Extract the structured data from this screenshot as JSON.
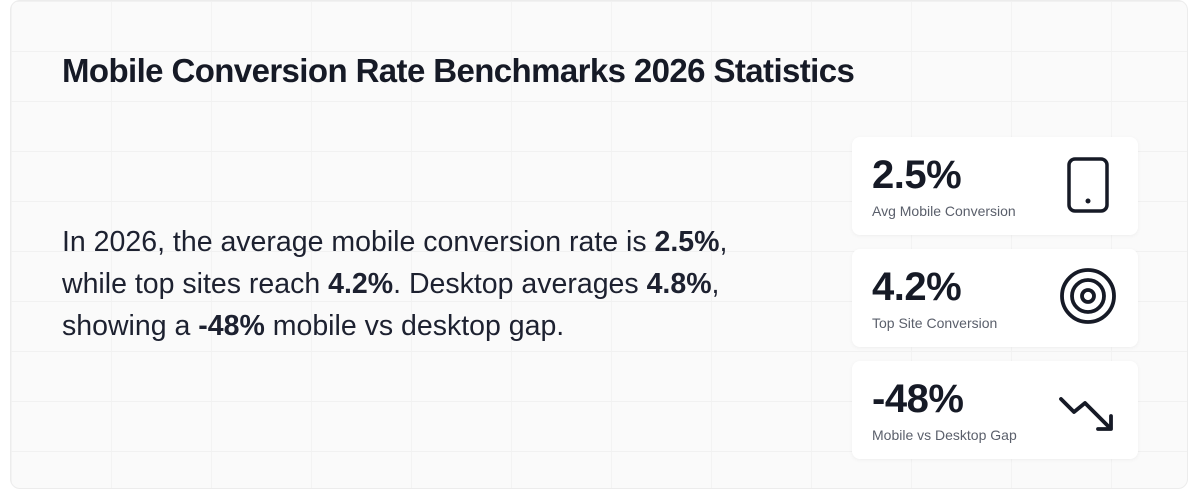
{
  "header": {
    "title": "Mobile Conversion Rate Benchmarks 2026 Statistics"
  },
  "summary": {
    "segments": [
      {
        "text": "In 2026, the average mobile conversion rate is ",
        "bold": false
      },
      {
        "text": "2.5%",
        "bold": true
      },
      {
        "text": ", while top sites reach ",
        "bold": false
      },
      {
        "text": "4.2%",
        "bold": true
      },
      {
        "text": ". Desktop averages ",
        "bold": false
      },
      {
        "text": "4.8%",
        "bold": true
      },
      {
        "text": ", showing a ",
        "bold": false
      },
      {
        "text": "-48%",
        "bold": true
      },
      {
        "text": " mobile vs desktop gap.",
        "bold": false
      }
    ]
  },
  "stats": [
    {
      "value": "2.5%",
      "label": "Avg Mobile Conversion"
    },
    {
      "value": "4.2%",
      "label": "Top Site Conversion"
    },
    {
      "value": "-48%",
      "label": "Mobile vs Desktop Gap"
    }
  ]
}
